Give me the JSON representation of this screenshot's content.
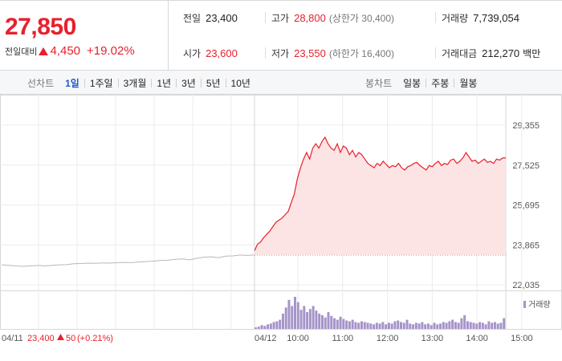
{
  "summary": {
    "current_price": "27,850",
    "change_label": "전일대비",
    "change_amount": "4,450",
    "change_percent": "+19.02%",
    "stats": [
      {
        "label": "전일",
        "value": "23,400",
        "note": ""
      },
      {
        "label": "고가",
        "value": "28,800",
        "note": "(상한가 30,400)"
      },
      {
        "label": "거래량",
        "value": "7,739,054",
        "note": ""
      },
      {
        "label": "시가",
        "value": "23,600",
        "note": ""
      },
      {
        "label": "저가",
        "value": "23,550",
        "note": "(하한가 16,400)"
      },
      {
        "label": "거래대금",
        "value": "212,270",
        "note": "백만"
      }
    ]
  },
  "tabs": {
    "line_chart_label": "선차트",
    "line_tabs": [
      "1일",
      "1주일",
      "3개월",
      "1년",
      "3년",
      "5년",
      "10년"
    ],
    "active_line_tab": 0,
    "candle_chart_label": "봉차트",
    "candle_tabs": [
      "일봉",
      "주봉",
      "월봉"
    ]
  },
  "colors": {
    "up": "#e8202d",
    "grey_line": "#b8b8b8",
    "volume": "#a594c9",
    "fill": "#fde4e4"
  },
  "chart_data": {
    "type": "line",
    "y_ticks": [
      "29,355",
      "27,525",
      "25,695",
      "23,865",
      "22,035"
    ],
    "y_tick_values": [
      29355,
      27525,
      25695,
      23865,
      22035
    ],
    "ylim": [
      22035,
      29355
    ],
    "prev_close": 23400,
    "prev_day": {
      "date_label": "04/11",
      "close_text": "23,400",
      "change_text": "50",
      "change_pct_text": "(+0.21%)",
      "values": [
        22950,
        22930,
        22900,
        22880,
        22900,
        22920,
        22900,
        22930,
        22950,
        22960,
        23000,
        23010,
        23030,
        23020,
        23040,
        23030,
        23050,
        23060,
        23050,
        23080,
        23100,
        23120,
        23150,
        23160,
        23200,
        23220,
        23180,
        23250,
        23300,
        23320,
        23280,
        23350,
        23360,
        23400,
        23380,
        23400
      ]
    },
    "today": {
      "date_label": "04/12",
      "x_ticks": [
        "10:00",
        "11:00",
        "12:00",
        "13:00",
        "14:00",
        "15:00"
      ],
      "values": [
        23600,
        23900,
        24000,
        24200,
        24350,
        24500,
        24700,
        24900,
        25000,
        25100,
        25250,
        25400,
        25800,
        26200,
        26900,
        27400,
        27800,
        28100,
        27800,
        28300,
        28500,
        28300,
        28600,
        28800,
        28500,
        28300,
        28200,
        28500,
        28100,
        28400,
        28300,
        28000,
        28200,
        27900,
        28100,
        28000,
        27800,
        27600,
        27500,
        27400,
        27600,
        27500,
        27700,
        27550,
        27400,
        27500,
        27450,
        27600,
        27400,
        27300,
        27450,
        27500,
        27600,
        27650,
        27500,
        27400,
        27300,
        27500,
        27450,
        27600,
        27700,
        27500,
        27600,
        27550,
        27750,
        27800,
        27600,
        27700,
        27850,
        28100,
        27900,
        27700,
        27750,
        27600,
        27700,
        27800,
        27650,
        27700,
        27600,
        27800,
        27750,
        27850,
        27850
      ],
      "volume_label": "거래량",
      "volume": [
        2,
        3,
        5,
        4,
        6,
        7,
        9,
        10,
        12,
        20,
        28,
        38,
        30,
        42,
        35,
        25,
        30,
        22,
        26,
        30,
        24,
        20,
        18,
        15,
        22,
        17,
        14,
        12,
        16,
        13,
        11,
        10,
        12,
        9,
        8,
        10,
        9,
        8,
        7,
        6,
        8,
        7,
        9,
        6,
        8,
        7,
        10,
        11,
        9,
        8,
        12,
        7,
        6,
        8,
        7,
        9,
        6,
        7,
        5,
        8,
        6,
        7,
        9,
        8,
        10,
        12,
        9,
        8,
        14,
        18,
        10,
        9,
        8,
        7,
        9,
        8,
        6,
        10,
        8,
        9,
        7,
        8,
        14
      ]
    }
  }
}
